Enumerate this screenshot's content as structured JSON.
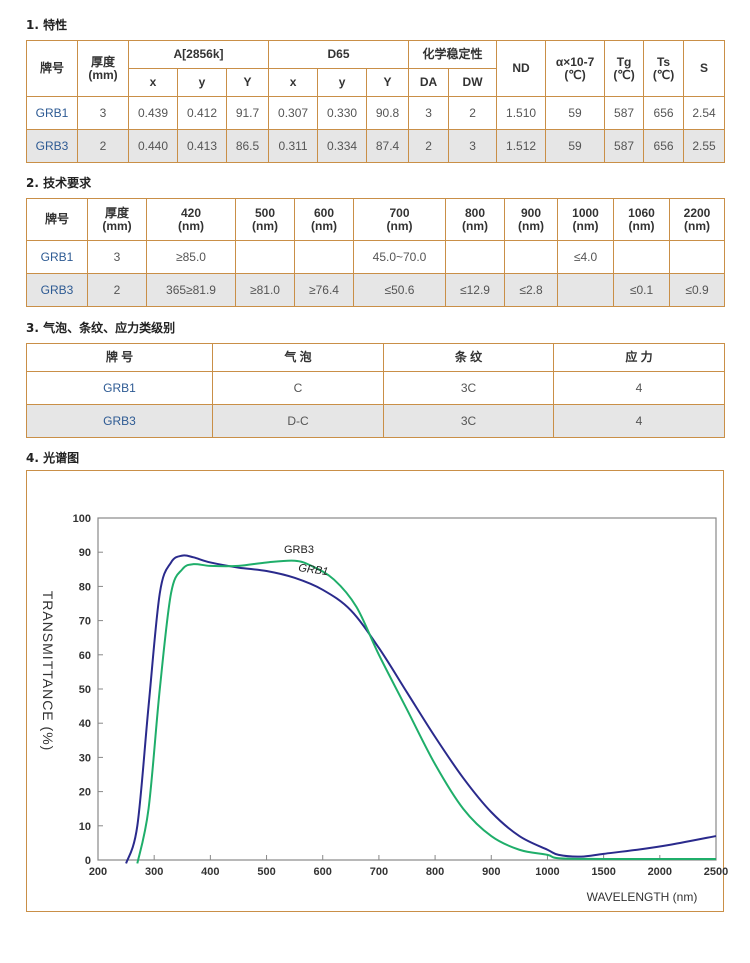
{
  "section1": {
    "title": "1. 特性",
    "headers": {
      "brand": "牌号",
      "thickness": "厚度\n(mm)",
      "a2856k": "A[2856k]",
      "d65": "D65",
      "chem": "化学稳定性",
      "nd": "ND",
      "alpha": "α×10-7\n(℃)",
      "tg": "Tg\n(℃)",
      "ts": "Ts\n(℃)",
      "s": "S",
      "x": "x",
      "y": "y",
      "Y": "Y",
      "da": "DA",
      "dw": "DW"
    },
    "rows": [
      [
        "GRB1",
        "3",
        "0.439",
        "0.412",
        "91.7",
        "0.307",
        "0.330",
        "90.8",
        "3",
        "2",
        "1.510",
        "59",
        "587",
        "656",
        "2.54"
      ],
      [
        "GRB3",
        "2",
        "0.440",
        "0.413",
        "86.5",
        "0.311",
        "0.334",
        "87.4",
        "2",
        "3",
        "1.512",
        "59",
        "587",
        "656",
        "2.55"
      ]
    ]
  },
  "section2": {
    "title": "2. 技术要求",
    "headers": [
      "牌号",
      "厚度\n(mm)",
      "420\n(nm)",
      "500\n(nm)",
      "600\n(nm)",
      "700\n(nm)",
      "800\n(nm)",
      "900\n(nm)",
      "1000\n(nm)",
      "1060\n(nm)",
      "2200\n(nm)"
    ],
    "rows": [
      [
        "GRB1",
        "3",
        "≥85.0",
        "",
        "",
        "45.0~70.0",
        "",
        "",
        "≤4.0",
        "",
        ""
      ],
      [
        "GRB3",
        "2",
        "365≥81.9",
        "≥81.0",
        "≥76.4",
        "≤50.6",
        "≤12.9",
        "≤2.8",
        "",
        "≤0.1",
        "≤0.9"
      ]
    ]
  },
  "section3": {
    "title": "3. 气泡、条纹、应力类级别",
    "headers": [
      "牌 号",
      "气 泡",
      "条 纹",
      "应 力"
    ],
    "rows": [
      [
        "GRB1",
        "C",
        "3C",
        "4"
      ],
      [
        "GRB3",
        "D-C",
        "3C",
        "4"
      ]
    ]
  },
  "section4": {
    "title": "4. 光谱图"
  },
  "chart_data": {
    "type": "line",
    "xlabel": "WAVELENGTH (nm)",
    "ylabel": "TRANSMITTANCE (%)",
    "xlim": [
      200,
      2500
    ],
    "ylim": [
      0,
      100
    ],
    "x_ticks": [
      200,
      300,
      400,
      500,
      600,
      700,
      800,
      900,
      1000,
      1500,
      2000,
      2500
    ],
    "y_ticks": [
      0,
      10,
      20,
      30,
      40,
      50,
      60,
      70,
      80,
      90,
      100
    ],
    "grid": false,
    "colors": {
      "GRB1": "#2a2a8c",
      "GRB3": "#1fae6a"
    },
    "series": [
      {
        "name": "GRB1",
        "points": [
          [
            250,
            -1
          ],
          [
            270,
            10
          ],
          [
            290,
            45
          ],
          [
            310,
            78
          ],
          [
            330,
            87
          ],
          [
            350,
            89
          ],
          [
            370,
            88.5
          ],
          [
            400,
            87
          ],
          [
            450,
            85.5
          ],
          [
            500,
            84.5
          ],
          [
            550,
            82.5
          ],
          [
            600,
            79
          ],
          [
            650,
            73
          ],
          [
            700,
            62
          ],
          [
            750,
            49
          ],
          [
            800,
            36
          ],
          [
            850,
            24
          ],
          [
            900,
            14
          ],
          [
            950,
            7
          ],
          [
            1000,
            3
          ],
          [
            1100,
            1.5
          ],
          [
            1300,
            1
          ],
          [
            1500,
            1.8
          ],
          [
            1800,
            3
          ],
          [
            2100,
            4.5
          ],
          [
            2500,
            7
          ]
        ]
      },
      {
        "name": "GRB3",
        "points": [
          [
            270,
            -1
          ],
          [
            290,
            15
          ],
          [
            310,
            50
          ],
          [
            330,
            78
          ],
          [
            350,
            85
          ],
          [
            370,
            86.5
          ],
          [
            400,
            86
          ],
          [
            450,
            86
          ],
          [
            500,
            87
          ],
          [
            550,
            87.5
          ],
          [
            580,
            86
          ],
          [
            620,
            82
          ],
          [
            660,
            74
          ],
          [
            700,
            60
          ],
          [
            750,
            44
          ],
          [
            800,
            28
          ],
          [
            850,
            15
          ],
          [
            900,
            7
          ],
          [
            950,
            3
          ],
          [
            1000,
            1.5
          ],
          [
            1100,
            0.5
          ],
          [
            1500,
            0.3
          ],
          [
            2500,
            0.3
          ]
        ]
      }
    ],
    "annotations": [
      "GRB3",
      "GRB1"
    ]
  }
}
